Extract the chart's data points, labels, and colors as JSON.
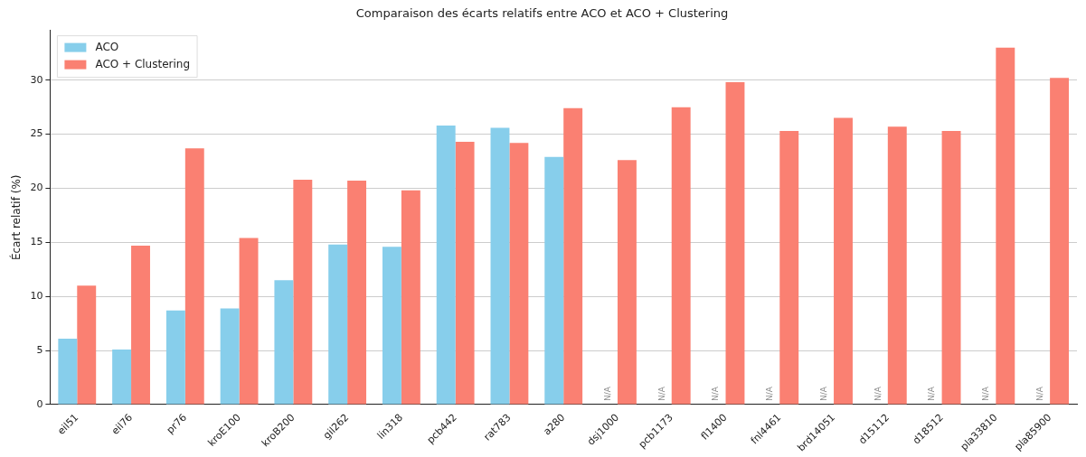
{
  "chart_data": {
    "type": "bar",
    "title": "Comparaison des écarts relatifs entre ACO et ACO + Clustering",
    "ylabel": "Écart relatif (%)",
    "categories": [
      "eil51",
      "eil76",
      "pr76",
      "kroE100",
      "kroB200",
      "gil262",
      "lin318",
      "pcb442",
      "rat783",
      "a280",
      "dsj1000",
      "pcb1173",
      "fl1400",
      "fnl4461",
      "brd14051",
      "d15112",
      "d18512",
      "pla33810",
      "pla85900"
    ],
    "series": [
      {
        "name": "ACO",
        "color": "#87ceeb",
        "values": [
          6.1,
          5.1,
          8.7,
          8.9,
          11.5,
          14.8,
          14.6,
          25.8,
          25.6,
          22.9,
          null,
          null,
          null,
          null,
          null,
          null,
          null,
          null,
          null
        ]
      },
      {
        "name": "ACO + Clustering",
        "color": "#fa8072",
        "values": [
          11.0,
          14.7,
          23.7,
          15.4,
          20.8,
          20.7,
          19.8,
          24.3,
          24.2,
          27.4,
          22.6,
          27.5,
          29.8,
          25.3,
          26.5,
          25.7,
          25.3,
          33.0,
          30.2
        ]
      }
    ],
    "ylim": [
      0,
      34.6
    ],
    "yticks": [
      0,
      5,
      10,
      15,
      20,
      25,
      30
    ],
    "grid": "y",
    "legend": "top left",
    "annotations": [
      {
        "text": "N/A",
        "x": "dsj1000",
        "y": 0
      },
      {
        "text": "N/A",
        "x": "pcb1173",
        "y": 0
      },
      {
        "text": "N/A",
        "x": "fl1400",
        "y": 0
      },
      {
        "text": "N/A",
        "x": "fnl4461",
        "y": 0
      },
      {
        "text": "N/A",
        "x": "brd14051",
        "y": 0
      },
      {
        "text": "N/A",
        "x": "d15112",
        "y": 0
      },
      {
        "text": "N/A",
        "x": "d18512",
        "y": 0
      },
      {
        "text": "N/A",
        "x": "pla33810",
        "y": 0
      },
      {
        "text": "N/A",
        "x": "pla85900",
        "y": 0
      }
    ]
  }
}
